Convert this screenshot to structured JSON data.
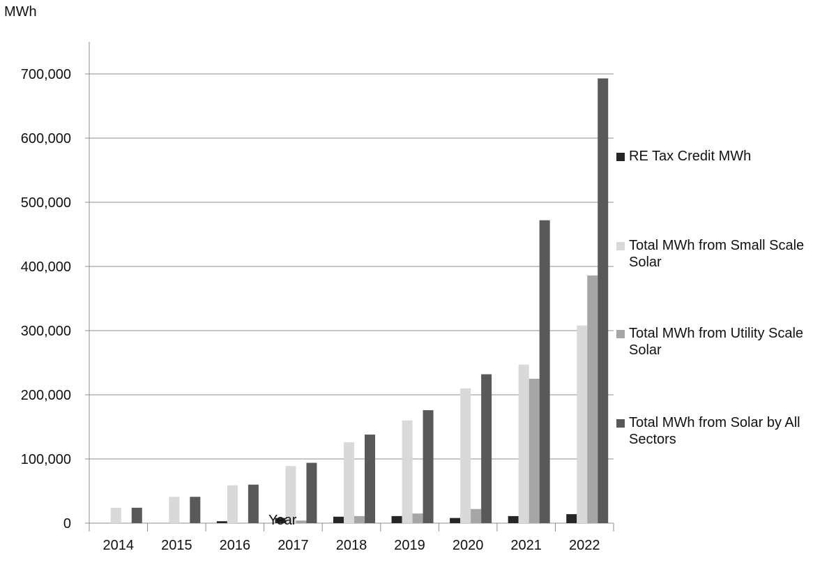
{
  "chart_data": {
    "type": "bar",
    "ylabel": "MWh",
    "xlabel": "Year",
    "ylim": [
      0,
      700000
    ],
    "yticks": [
      0,
      100000,
      200000,
      300000,
      400000,
      500000,
      600000,
      700000
    ],
    "ytick_labels": [
      "0",
      "100,000",
      "200,000",
      "300,000",
      "400,000",
      "500,000",
      "600,000",
      "700,000"
    ],
    "grid": true,
    "legend_position": "right",
    "categories": [
      "2014",
      "2015",
      "2016",
      "2017",
      "2018",
      "2019",
      "2020",
      "2021",
      "2022"
    ],
    "series": [
      {
        "name": "RE Tax Credit MWh",
        "color": "#262626",
        "values": [
          0,
          0,
          3000,
          8000,
          10000,
          11000,
          8000,
          11000,
          14000
        ]
      },
      {
        "name": "Total MWh from Small Scale Solar",
        "color": "#d9d9d9",
        "values": [
          24000,
          41000,
          59000,
          89000,
          126000,
          160000,
          210000,
          247000,
          308000
        ]
      },
      {
        "name": "Total MWh from Utility Scale Solar",
        "color": "#a6a6a6",
        "values": [
          0,
          0,
          0,
          4000,
          11000,
          15000,
          22000,
          225000,
          386000
        ]
      },
      {
        "name": "Total MWh from Solar by All Sectors",
        "color": "#595959",
        "values": [
          24000,
          41000,
          60000,
          94000,
          138000,
          176000,
          232000,
          472000,
          693000
        ]
      }
    ]
  }
}
